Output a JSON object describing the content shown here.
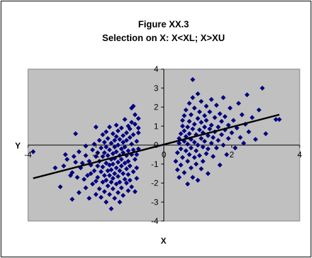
{
  "chart_data": {
    "type": "scatter",
    "title": "Figure XX.3",
    "subtitle": "Selection on X: X<XL; X>XU",
    "xlabel": "X",
    "ylabel": "Y",
    "xlim": [
      -4,
      4
    ],
    "ylim": [
      -4,
      4
    ],
    "x_ticks": [
      "-4",
      "-2",
      "0",
      "2",
      "4"
    ],
    "y_ticks": [
      "4",
      "3",
      "2",
      "1",
      "0",
      "-1",
      "-2",
      "-3",
      "-4"
    ],
    "grid": false,
    "legend": "none",
    "plot_background": "#c0c0c0",
    "marker_color": "#000080",
    "line_color": "#000000",
    "series": [
      {
        "type": "scatter",
        "marker": "diamond",
        "points": [
          [
            -3.85,
            -0.35
          ],
          [
            -3.2,
            -1.2
          ],
          [
            -3.05,
            -2.2
          ],
          [
            -2.95,
            -1.1
          ],
          [
            -2.9,
            -0.5
          ],
          [
            -2.85,
            -0.75
          ],
          [
            -2.75,
            -1.6
          ],
          [
            -2.7,
            -2.85
          ],
          [
            -2.7,
            -1.45
          ],
          [
            -2.65,
            -0.6
          ],
          [
            -2.6,
            0.6
          ],
          [
            -2.6,
            -0.9
          ],
          [
            -2.55,
            -1.7
          ],
          [
            -2.5,
            -2.5
          ],
          [
            -2.5,
            -0.35
          ],
          [
            -2.45,
            -1.2
          ],
          [
            -2.4,
            -0.95
          ],
          [
            -2.35,
            -1.8
          ],
          [
            -2.3,
            -2.25
          ],
          [
            -2.3,
            -0.05
          ],
          [
            -2.3,
            -0.55
          ],
          [
            -2.25,
            -1.6
          ],
          [
            -2.2,
            -2.8
          ],
          [
            -2.2,
            -0.85
          ],
          [
            -2.15,
            -1.05
          ],
          [
            -2.15,
            -1.5
          ],
          [
            -2.1,
            -2.05
          ],
          [
            -2.1,
            -0.25
          ],
          [
            -2.05,
            -1.35
          ],
          [
            -2.05,
            0.05
          ],
          [
            -2.0,
            -2.6
          ],
          [
            -2.0,
            -1.9
          ],
          [
            -2.0,
            -0.6
          ],
          [
            -2.0,
            0.95
          ],
          [
            -1.95,
            -1.1
          ],
          [
            -1.95,
            -0.4
          ],
          [
            -1.95,
            -1.7
          ],
          [
            -1.9,
            -2.3
          ],
          [
            -1.9,
            0.25
          ],
          [
            -1.9,
            -0.85
          ],
          [
            -1.85,
            -1.4
          ],
          [
            -1.85,
            -2.75
          ],
          [
            -1.85,
            -0.15
          ],
          [
            -1.8,
            -0.6
          ],
          [
            -1.8,
            -1.95
          ],
          [
            -1.8,
            0.55
          ],
          [
            -1.8,
            -1.15
          ],
          [
            -1.75,
            -0.4
          ],
          [
            -1.75,
            -2.45
          ],
          [
            -1.75,
            -1.6
          ],
          [
            -1.75,
            0.15
          ],
          [
            -1.7,
            -0.95
          ],
          [
            -1.7,
            -3.0
          ],
          [
            -1.7,
            -0.1
          ],
          [
            -1.7,
            -1.85
          ],
          [
            -1.7,
            0.7
          ],
          [
            -1.65,
            -1.35
          ],
          [
            -1.65,
            -0.55
          ],
          [
            -1.65,
            -2.15
          ],
          [
            -1.65,
            0.35
          ],
          [
            -1.6,
            -1.05
          ],
          [
            -1.6,
            -0.25
          ],
          [
            -1.6,
            -1.6
          ],
          [
            -1.6,
            -2.6
          ],
          [
            -1.6,
            0.95
          ],
          [
            -1.55,
            -0.75
          ],
          [
            -1.55,
            -1.95
          ],
          [
            -1.55,
            0.1
          ],
          [
            -1.55,
            -1.3
          ],
          [
            -1.55,
            -3.35
          ],
          [
            -1.5,
            -0.45
          ],
          [
            -1.5,
            -1.75
          ],
          [
            -1.5,
            0.6
          ],
          [
            -1.5,
            -2.3
          ],
          [
            -1.5,
            -1.0
          ],
          [
            -1.45,
            0.25
          ],
          [
            -1.45,
            -0.1
          ],
          [
            -1.45,
            -1.5
          ],
          [
            -1.45,
            -2.8
          ],
          [
            -1.45,
            -0.7
          ],
          [
            -1.4,
            1.05
          ],
          [
            -1.4,
            -1.2
          ],
          [
            -1.4,
            -2.05
          ],
          [
            -1.4,
            0.45
          ],
          [
            -1.4,
            -0.35
          ],
          [
            -1.35,
            -1.65
          ],
          [
            -1.35,
            -0.9
          ],
          [
            -1.35,
            -2.5
          ],
          [
            -1.35,
            0.75
          ],
          [
            -1.35,
            0.0
          ],
          [
            -1.3,
            -1.35
          ],
          [
            -1.3,
            -0.55
          ],
          [
            -1.3,
            -1.95
          ],
          [
            -1.3,
            0.3
          ],
          [
            -1.3,
            -3.0
          ],
          [
            -1.25,
            -0.2
          ],
          [
            -1.25,
            -1.1
          ],
          [
            -1.25,
            0.9
          ],
          [
            -1.25,
            -2.25
          ],
          [
            -1.25,
            -0.75
          ],
          [
            -1.2,
            0.5
          ],
          [
            -1.2,
            -1.5
          ],
          [
            -1.2,
            -0.4
          ],
          [
            -1.2,
            -2.65
          ],
          [
            -1.2,
            0.15
          ],
          [
            -1.15,
            -0.95
          ],
          [
            -1.15,
            1.35
          ],
          [
            -1.15,
            -1.8
          ],
          [
            -1.15,
            -0.1
          ],
          [
            -1.1,
            -1.25
          ],
          [
            -1.1,
            0.65
          ],
          [
            -1.1,
            -2.0
          ],
          [
            -1.1,
            -0.55
          ],
          [
            -1.1,
            0.25
          ],
          [
            -1.05,
            -1.55
          ],
          [
            -1.05,
            -2.4
          ],
          [
            -1.05,
            1.0
          ],
          [
            -1.05,
            -0.3
          ],
          [
            -1.05,
            -0.85
          ],
          [
            -1.0,
            0.4
          ],
          [
            -1.0,
            -1.1
          ],
          [
            -1.0,
            -1.85
          ],
          [
            -1.0,
            0.85
          ],
          [
            -0.95,
            -0.5
          ],
          [
            -0.95,
            -2.2
          ],
          [
            -0.95,
            0.05
          ],
          [
            -0.95,
            1.95
          ],
          [
            -0.95,
            1.2
          ],
          [
            -0.9,
            -1.4
          ],
          [
            -0.9,
            0.55
          ],
          [
            -0.9,
            -0.25
          ],
          [
            -0.85,
            -2.45
          ],
          [
            -0.85,
            -0.75
          ],
          [
            -0.85,
            1.6
          ],
          [
            -0.85,
            1.1
          ],
          [
            -0.8,
            0.2
          ],
          [
            -0.8,
            -1.2
          ],
          [
            -0.8,
            -0.5
          ],
          [
            -0.8,
            -1.75
          ],
          [
            -0.75,
            0.65
          ],
          [
            -0.75,
            -0.2
          ],
          [
            -0.75,
            1.4
          ],
          [
            -0.75,
            0.9
          ],
          [
            -0.9,
            2.05
          ],
          [
            0.35,
            -0.85
          ],
          [
            0.4,
            -1.3
          ],
          [
            0.4,
            -0.4
          ],
          [
            0.45,
            0.1
          ],
          [
            0.45,
            -1.7
          ],
          [
            0.45,
            0.35
          ],
          [
            0.5,
            0.6
          ],
          [
            0.5,
            -0.2
          ],
          [
            0.5,
            -1.05
          ],
          [
            0.55,
            1.3
          ],
          [
            0.55,
            1.0
          ],
          [
            0.55,
            -0.65
          ],
          [
            0.6,
            0.2
          ],
          [
            0.6,
            -1.45
          ],
          [
            0.6,
            1.55
          ],
          [
            0.6,
            0.75
          ],
          [
            0.65,
            -0.3
          ],
          [
            0.65,
            0.45
          ],
          [
            0.65,
            1.85
          ],
          [
            0.7,
            -0.85
          ],
          [
            0.7,
            0.95
          ],
          [
            0.7,
            -2.05
          ],
          [
            0.7,
            0.05
          ],
          [
            0.75,
            1.25
          ],
          [
            0.75,
            -0.5
          ],
          [
            0.75,
            2.2
          ],
          [
            0.75,
            0.6
          ],
          [
            0.8,
            -1.2
          ],
          [
            0.8,
            0.3
          ],
          [
            0.8,
            1.6
          ],
          [
            0.8,
            -0.15
          ],
          [
            0.85,
            0.85
          ],
          [
            0.85,
            -1.7
          ],
          [
            0.85,
            3.45
          ],
          [
            0.85,
            2.5
          ],
          [
            0.9,
            -0.65
          ],
          [
            0.9,
            1.1
          ],
          [
            0.9,
            0.15
          ],
          [
            0.9,
            1.95
          ],
          [
            0.95,
            -1.0
          ],
          [
            0.95,
            0.55
          ],
          [
            0.95,
            -0.3
          ],
          [
            1.0,
            1.4
          ],
          [
            1.0,
            2.7
          ],
          [
            1.0,
            0.0
          ],
          [
            1.0,
            -1.85
          ],
          [
            1.05,
            0.8
          ],
          [
            1.05,
            -0.55
          ],
          [
            1.05,
            1.75
          ],
          [
            1.1,
            0.35
          ],
          [
            1.1,
            -1.25
          ],
          [
            1.1,
            1.2
          ],
          [
            1.1,
            2.3
          ],
          [
            1.15,
            -0.1
          ],
          [
            1.15,
            0.65
          ],
          [
            1.15,
            -0.85
          ],
          [
            1.2,
            1.55
          ],
          [
            1.2,
            0.95
          ],
          [
            1.2,
            0.2
          ],
          [
            1.25,
            -0.45
          ],
          [
            1.25,
            2.05
          ],
          [
            1.25,
            1.3
          ],
          [
            1.3,
            0.5
          ],
          [
            1.3,
            -1.5
          ],
          [
            1.3,
            -0.2
          ],
          [
            1.35,
            0.85
          ],
          [
            1.35,
            1.75
          ],
          [
            1.4,
            0.1
          ],
          [
            1.4,
            2.4
          ],
          [
            1.4,
            1.05
          ],
          [
            1.45,
            -0.6
          ],
          [
            1.45,
            0.4
          ],
          [
            1.5,
            1.45
          ],
          [
            1.5,
            0.7
          ],
          [
            1.55,
            -0.15
          ],
          [
            1.55,
            2.1
          ],
          [
            1.6,
            0.95
          ],
          [
            1.6,
            0.25
          ],
          [
            1.65,
            1.65
          ],
          [
            1.65,
            -1.05
          ],
          [
            1.7,
            0.55
          ],
          [
            1.7,
            1.25
          ],
          [
            1.75,
            2.5
          ],
          [
            1.75,
            0.0
          ],
          [
            1.8,
            0.8
          ],
          [
            1.8,
            1.5
          ],
          [
            1.85,
            -0.5
          ],
          [
            1.9,
            1.05
          ],
          [
            1.9,
            0.35
          ],
          [
            1.95,
            1.95
          ],
          [
            2.0,
            0.65
          ],
          [
            2.05,
            1.3
          ],
          [
            2.1,
            -0.15
          ],
          [
            2.15,
            0.9
          ],
          [
            2.2,
            2.2
          ],
          [
            2.25,
            0.4
          ],
          [
            2.3,
            1.6
          ],
          [
            2.35,
            0.1
          ],
          [
            2.4,
            1.1
          ],
          [
            2.45,
            2.65
          ],
          [
            2.5,
            0.7
          ],
          [
            2.6,
            1.45
          ],
          [
            2.7,
            0.3
          ],
          [
            2.8,
            1.85
          ],
          [
            2.9,
            3.0
          ],
          [
            3.0,
            0.6
          ],
          [
            3.3,
            1.35
          ],
          [
            3.4,
            1.35
          ]
        ]
      },
      {
        "type": "line",
        "name": "",
        "x": [
          -3.85,
          3.4
        ],
        "y": [
          -1.75,
          1.6
        ]
      }
    ]
  }
}
